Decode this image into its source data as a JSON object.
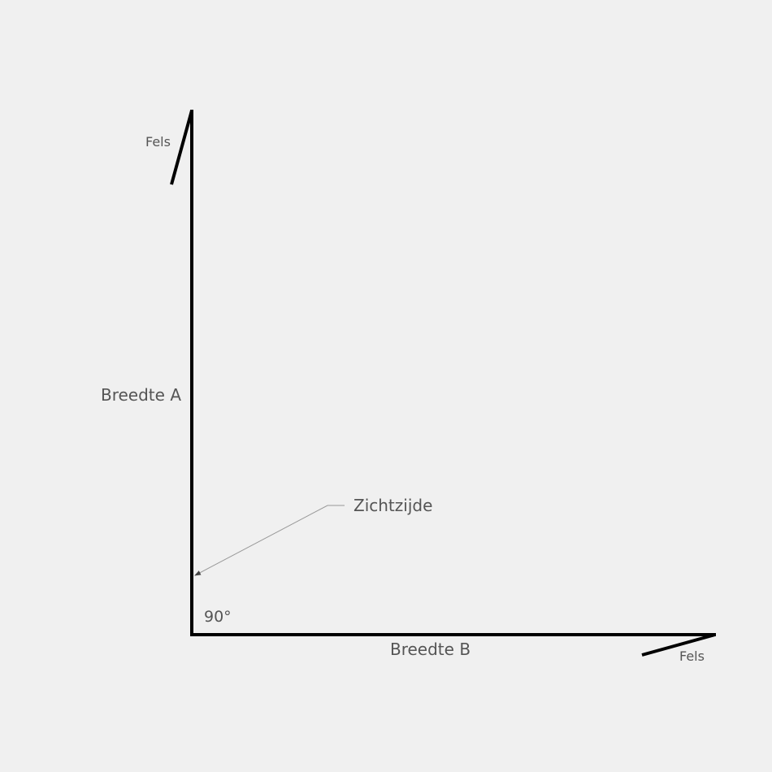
{
  "labels": {
    "fels_top": "Fels",
    "breedte_a": "Breedte A",
    "zichtzijde": "Zichtzijde",
    "angle": "90°",
    "breedte_b": "Breedte B",
    "fels_bottom": "Fels"
  },
  "colors": {
    "profile": "#000000",
    "leader": "#999999",
    "text": "#555555"
  }
}
